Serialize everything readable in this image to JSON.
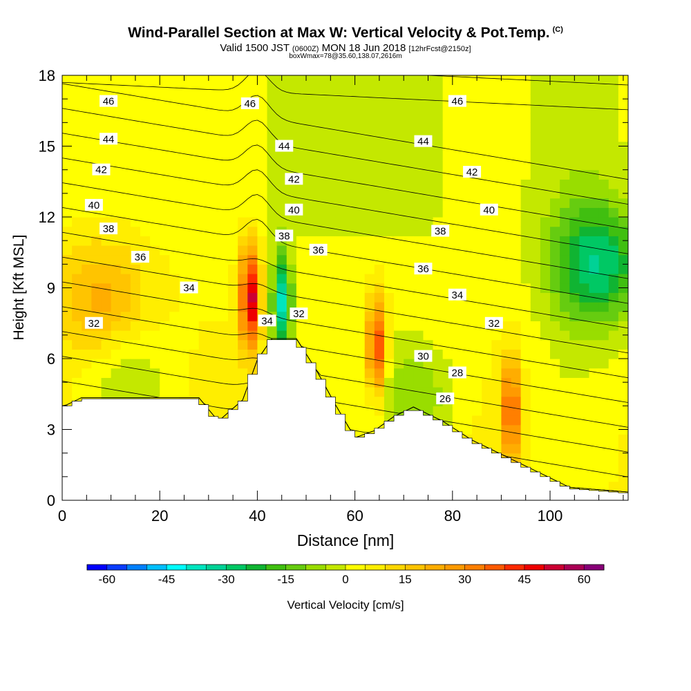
{
  "title": {
    "main": "Wind-Parallel Section at Max W: Vertical Velocity & Pot.Temp.",
    "main_mark": "(C)",
    "valid_a": "Valid 1500 JST",
    "valid_b": "(0600Z)",
    "valid_c": "MON 18 Jun 2018",
    "valid_d": "[12hrFcst@2150z]",
    "box": "boxWmax=78@35.60,138.07,2616m"
  },
  "chart_data": {
    "type": "heatmap",
    "xlabel": "Distance [nm]",
    "ylabel": "Height [Kft MSL]",
    "xlim": [
      0,
      116
    ],
    "ylim": [
      0,
      18
    ],
    "x_ticks": [
      "0",
      "20",
      "40",
      "60",
      "80",
      "100"
    ],
    "y_ticks": [
      "0",
      "3",
      "6",
      "9",
      "12",
      "15",
      "18"
    ],
    "colorbar": {
      "label": "Vertical Velocity [cm/s]",
      "ticks": [
        "-60",
        "-45",
        "-30",
        "-15",
        "0",
        "15",
        "30",
        "45",
        "60"
      ],
      "min": -65,
      "max": 65,
      "step": 5,
      "colors": [
        "#0000ff",
        "#0a3cff",
        "#0080ff",
        "#00bfff",
        "#00ffff",
        "#00e5bf",
        "#00d296",
        "#00c864",
        "#10b432",
        "#40bf10",
        "#66cc10",
        "#99dd00",
        "#c4e800",
        "#ffff00",
        "#ffee00",
        "#ffd700",
        "#ffc400",
        "#ffad00",
        "#ff9a00",
        "#ff7f00",
        "#ff5a00",
        "#ff2a00",
        "#ee0000",
        "#cc0033",
        "#aa0055",
        "#880077"
      ]
    },
    "terrain_kft": [
      [
        0,
        3.9
      ],
      [
        4,
        4.3
      ],
      [
        28,
        4.3
      ],
      [
        32,
        3.3
      ],
      [
        37,
        4.2
      ],
      [
        40,
        5.9
      ],
      [
        43,
        6.8
      ],
      [
        48,
        6.8
      ],
      [
        52,
        5.5
      ],
      [
        56,
        4.0
      ],
      [
        60,
        2.6
      ],
      [
        64,
        2.9
      ],
      [
        68,
        3.5
      ],
      [
        72,
        3.9
      ],
      [
        78,
        3.3
      ],
      [
        84,
        2.5
      ],
      [
        90,
        1.9
      ],
      [
        96,
        1.3
      ],
      [
        104,
        0.5
      ],
      [
        116,
        0.3
      ]
    ],
    "wind_velocity_features": [
      {
        "x": 38.5,
        "y": 8.6,
        "w": 50
      },
      {
        "x": 45.0,
        "y": 8.3,
        "w": -40
      },
      {
        "x": 64.5,
        "y": 6.5,
        "w": 40
      },
      {
        "x": 92.0,
        "y": 3.8,
        "w": 35
      },
      {
        "x": 8.0,
        "y": 8.5,
        "w": 18
      },
      {
        "x": 110.0,
        "y": 10.0,
        "w": -30
      },
      {
        "x": 13.0,
        "y": 5.2,
        "w": -12
      },
      {
        "x": 72.0,
        "y": 4.3,
        "w": -15
      }
    ],
    "contour_labels": [
      {
        "text": "46",
        "x": 9.5,
        "y": 16.9
      },
      {
        "text": "46",
        "x": 38.5,
        "y": 16.8
      },
      {
        "text": "46",
        "x": 81.0,
        "y": 16.9
      },
      {
        "text": "44",
        "x": 9.5,
        "y": 15.3
      },
      {
        "text": "44",
        "x": 45.5,
        "y": 15.0
      },
      {
        "text": "44",
        "x": 74.0,
        "y": 15.2
      },
      {
        "text": "42",
        "x": 8.0,
        "y": 14.0
      },
      {
        "text": "42",
        "x": 47.5,
        "y": 13.6
      },
      {
        "text": "42",
        "x": 84.0,
        "y": 13.9
      },
      {
        "text": "40",
        "x": 6.5,
        "y": 12.5
      },
      {
        "text": "40",
        "x": 47.5,
        "y": 12.3
      },
      {
        "text": "40",
        "x": 87.5,
        "y": 12.3
      },
      {
        "text": "38",
        "x": 9.5,
        "y": 11.5
      },
      {
        "text": "38",
        "x": 45.5,
        "y": 11.2
      },
      {
        "text": "38",
        "x": 77.5,
        "y": 11.4
      },
      {
        "text": "36",
        "x": 16.0,
        "y": 10.3
      },
      {
        "text": "36",
        "x": 52.5,
        "y": 10.6
      },
      {
        "text": "36",
        "x": 74.0,
        "y": 9.8
      },
      {
        "text": "34",
        "x": 26.0,
        "y": 9.0
      },
      {
        "text": "34",
        "x": 42.0,
        "y": 7.6
      },
      {
        "text": "34",
        "x": 81.0,
        "y": 8.7
      },
      {
        "text": "32",
        "x": 6.5,
        "y": 7.5
      },
      {
        "text": "32",
        "x": 48.5,
        "y": 7.9
      },
      {
        "text": "32",
        "x": 88.5,
        "y": 7.5
      },
      {
        "text": "30",
        "x": 74.0,
        "y": 6.1
      },
      {
        "text": "28",
        "x": 81.0,
        "y": 5.4
      },
      {
        "text": "26",
        "x": 78.5,
        "y": 4.3
      }
    ]
  }
}
